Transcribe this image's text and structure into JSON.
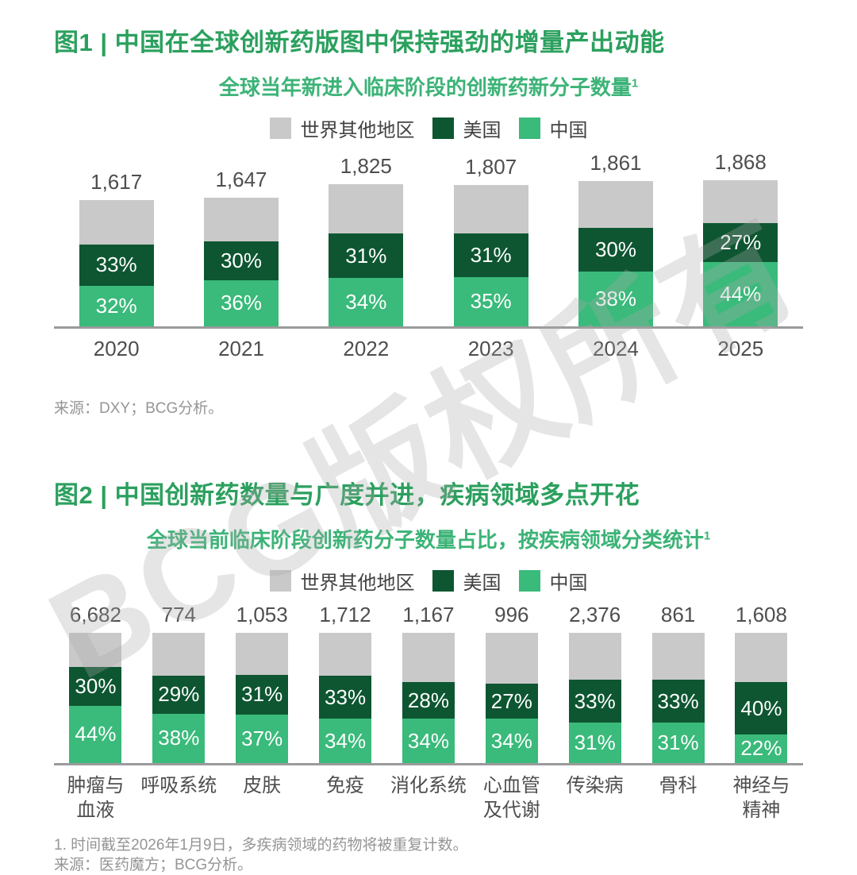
{
  "watermark": "BCG版权所有",
  "colors": {
    "rest": "#c9c9c9",
    "us": "#0d5631",
    "cn": "#3aba7b",
    "title_green": "#2ba05e",
    "subtitle_green": "#3cb377",
    "axis_gray": "#9b9b9b",
    "label_gray": "#4e4e4e",
    "muted_gray": "#959595"
  },
  "legend": {
    "items": [
      {
        "label": "世界其他地区",
        "color_key": "rest"
      },
      {
        "label": "美国",
        "color_key": "us"
      },
      {
        "label": "中国",
        "color_key": "cn"
      }
    ]
  },
  "chart_data": [
    {
      "type": "bar",
      "stacked": true,
      "title": "图1 | 中国在全球创新药版图中保持强劲的增量产出动能",
      "subtitle": "全球当年新进入临床阶段的创新药新分子数量",
      "subtitle_superscript": "1",
      "categories": [
        "2020",
        "2021",
        "2022",
        "2023",
        "2024",
        "2025"
      ],
      "totals": [
        1617,
        1647,
        1825,
        1807,
        1861,
        1868
      ],
      "total_labels": [
        "1,617",
        "1,647",
        "1,825",
        "1,807",
        "1,861",
        "1,868"
      ],
      "series": [
        {
          "name": "中国",
          "pct": [
            32,
            36,
            34,
            35,
            38,
            44
          ]
        },
        {
          "name": "美国",
          "pct": [
            33,
            30,
            31,
            31,
            30,
            27
          ]
        },
        {
          "name": "世界其他地区",
          "pct": [
            35,
            34,
            35,
            34,
            32,
            29
          ]
        }
      ],
      "bar_height_mode": "proportional_to_total",
      "legend_position": "top",
      "source": "来源：DXY；BCG分析。"
    },
    {
      "type": "bar",
      "stacked": true,
      "title": "图2 | 中国创新药数量与广度并进，疾病领域多点开花",
      "subtitle": "全球当前临床阶段创新药分子数量占比，按疾病领域分类统计",
      "subtitle_superscript": "1",
      "categories": [
        "肿瘤与\n血液",
        "呼吸系统",
        "皮肤",
        "免疫",
        "消化系统",
        "心血管\n及代谢",
        "传染病",
        "骨科",
        "神经与\n精神"
      ],
      "totals": [
        6682,
        774,
        1053,
        1712,
        1167,
        996,
        2376,
        861,
        1608
      ],
      "total_labels": [
        "6,682",
        "774",
        "1,053",
        "1,712",
        "1,167",
        "996",
        "2,376",
        "861",
        "1,608"
      ],
      "series": [
        {
          "name": "中国",
          "pct": [
            44,
            38,
            37,
            34,
            34,
            34,
            31,
            31,
            22
          ]
        },
        {
          "name": "美国",
          "pct": [
            30,
            29,
            31,
            33,
            28,
            27,
            33,
            33,
            40
          ]
        },
        {
          "name": "世界其他地区",
          "pct": [
            26,
            33,
            32,
            33,
            38,
            39,
            36,
            36,
            38
          ]
        }
      ],
      "bar_height_mode": "equal",
      "legend_position": "top",
      "footnote": "1. 时间截至2026年1月9日，多疾病领域的药物将被重复计数。",
      "source": "来源：医药魔方；BCG分析。"
    }
  ]
}
